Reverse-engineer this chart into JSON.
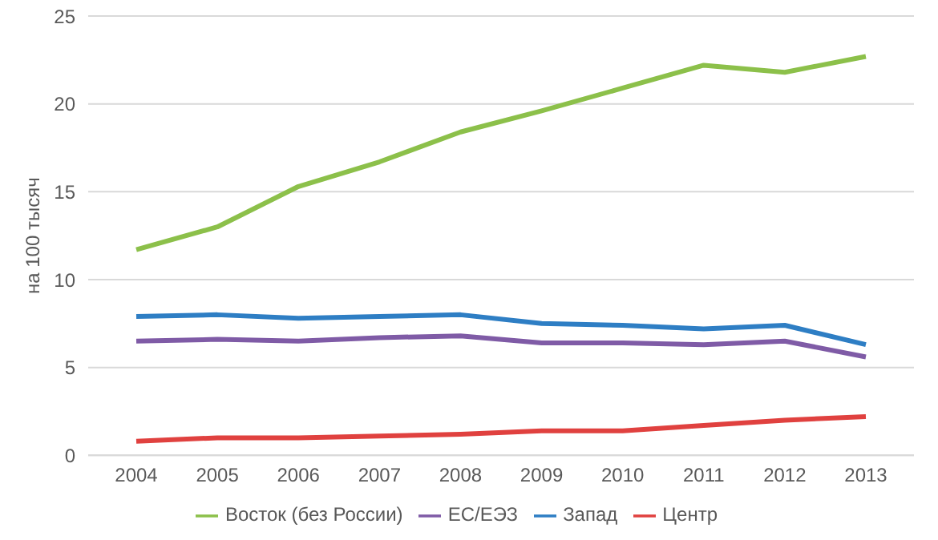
{
  "chart_data": {
    "type": "line",
    "ylabel": "на 100 тысяч",
    "categories": [
      "2004",
      "2005",
      "2006",
      "2007",
      "2008",
      "2009",
      "2010",
      "2011",
      "2012",
      "2013"
    ],
    "series": [
      {
        "name": "Запад",
        "color": "#2e7ec4",
        "values": [
          7.9,
          8.0,
          7.8,
          7.9,
          8.0,
          7.5,
          7.4,
          7.2,
          7.4,
          6.3
        ]
      },
      {
        "name": "Центр",
        "color": "#e0413f",
        "values": [
          0.8,
          1.0,
          1.0,
          1.1,
          1.2,
          1.4,
          1.4,
          1.7,
          2.0,
          2.2
        ]
      },
      {
        "name": "Восток (без России)",
        "color": "#8cc04a",
        "values": [
          11.7,
          13.0,
          15.3,
          16.7,
          18.4,
          19.6,
          20.9,
          22.2,
          21.8,
          22.7
        ]
      },
      {
        "name": "ЕС/ЕЭЗ",
        "color": "#7f5ba6",
        "values": [
          6.5,
          6.6,
          6.5,
          6.7,
          6.8,
          6.4,
          6.4,
          6.3,
          6.5,
          5.6
        ]
      }
    ],
    "ylim": [
      0,
      25
    ],
    "yticks": [
      0,
      5,
      10,
      15,
      20,
      25
    ],
    "grid": "y",
    "legend": "bottom",
    "marker": "none",
    "line_style": "solid"
  }
}
